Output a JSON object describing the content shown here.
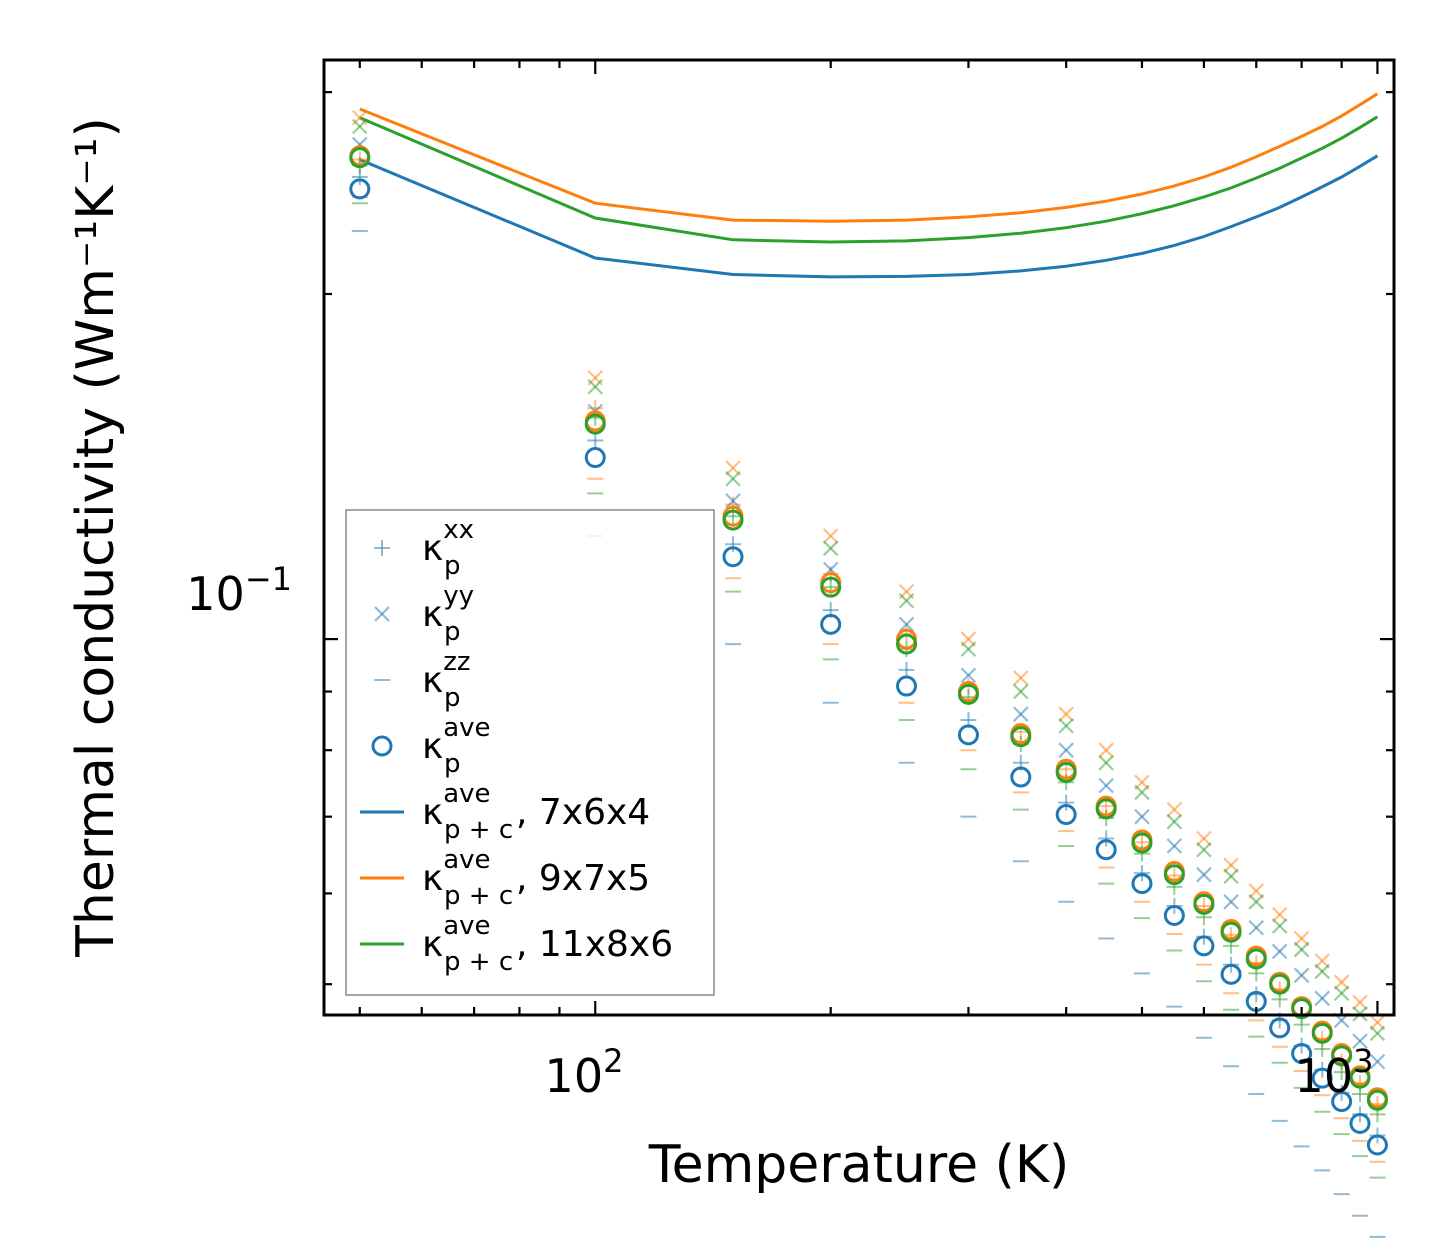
{
  "chart_data": {
    "type": "scatter",
    "xscale": "log",
    "yscale": "log",
    "xlabel": "Temperature (K)",
    "ylabel": "Thermal conductivity (Wm⁻¹K⁻¹)",
    "xlim": [
      45,
      1050
    ],
    "ylim": [
      0.047,
      0.32
    ],
    "x_tick_labels": [
      {
        "base": "10",
        "exp": "2",
        "value": 100
      },
      {
        "base": "10",
        "exp": "3",
        "value": 1000
      }
    ],
    "y_tick_labels": [
      {
        "base": "10",
        "exp": "−1",
        "value": 0.1
      }
    ],
    "x": [
      50,
      100,
      150,
      200,
      250,
      300,
      350,
      400,
      450,
      500,
      550,
      600,
      650,
      700,
      750,
      800,
      850,
      900,
      950,
      1000
    ],
    "scatter_series": [
      {
        "name": "kxx_7x6x4",
        "group": "xx",
        "color": "#1f77b4",
        "values": [
          0.253,
          0.149,
          0.121,
          0.106,
          0.094,
          0.085,
          0.078,
          0.072,
          0.067,
          0.0625,
          0.0585,
          0.055,
          0.052,
          0.049,
          0.0465,
          0.0442,
          0.0421,
          0.0402,
          0.0385,
          0.0369
        ]
      },
      {
        "name": "kxx_9x7x5",
        "group": "xx",
        "color": "#ff7f0e",
        "values": [
          0.262,
          0.159,
          0.131,
          0.114,
          0.101,
          0.091,
          0.083,
          0.077,
          0.0715,
          0.0665,
          0.0622,
          0.0585,
          0.0552,
          0.0522,
          0.0495,
          0.047,
          0.0448,
          0.0428,
          0.041,
          0.0393
        ]
      },
      {
        "name": "kxx_11x8x6",
        "group": "xx",
        "color": "#2ca02c",
        "values": [
          0.259,
          0.156,
          0.128,
          0.111,
          0.098,
          0.089,
          0.081,
          0.075,
          0.0698,
          0.065,
          0.0608,
          0.0572,
          0.054,
          0.0511,
          0.0485,
          0.0461,
          0.0439,
          0.0419,
          0.0401,
          0.0385
        ]
      },
      {
        "name": "kyy_7x6x4",
        "group": "yy",
        "color": "#1f77b4",
        "values": [
          0.27,
          0.158,
          0.132,
          0.115,
          0.103,
          0.093,
          0.086,
          0.08,
          0.0745,
          0.07,
          0.066,
          0.0623,
          0.059,
          0.056,
          0.0534,
          0.0509,
          0.0486,
          0.0465,
          0.0446,
          0.0428
        ]
      },
      {
        "name": "kyy_9x7x5",
        "group": "yy",
        "color": "#ff7f0e",
        "values": [
          0.285,
          0.169,
          0.141,
          0.123,
          0.11,
          0.1,
          0.0925,
          0.086,
          0.08,
          0.075,
          0.071,
          0.067,
          0.0635,
          0.0603,
          0.0575,
          0.0548,
          0.0524,
          0.0502,
          0.0482,
          0.0463
        ]
      },
      {
        "name": "kyy_11x8x6",
        "group": "yy",
        "color": "#2ca02c",
        "values": [
          0.28,
          0.166,
          0.138,
          0.12,
          0.108,
          0.098,
          0.09,
          0.084,
          0.078,
          0.0735,
          0.0693,
          0.0655,
          0.0621,
          0.059,
          0.0562,
          0.0536,
          0.0513,
          0.0491,
          0.0471,
          0.0453
        ]
      },
      {
        "name": "kzz_7x6x4",
        "group": "zz",
        "color": "#1f77b4",
        "values": [
          0.227,
          0.123,
          0.099,
          0.088,
          0.078,
          0.07,
          0.064,
          0.059,
          0.0548,
          0.0511,
          0.0478,
          0.0449,
          0.0424,
          0.0401,
          0.038,
          0.0361,
          0.0344,
          0.0328,
          0.0314,
          0.0301
        ]
      },
      {
        "name": "kzz_9x7x5",
        "group": "zz",
        "color": "#ff7f0e",
        "values": [
          0.243,
          0.138,
          0.113,
          0.099,
          0.088,
          0.08,
          0.0735,
          0.068,
          0.0632,
          0.059,
          0.0553,
          0.052,
          0.0491,
          0.0465,
          0.0441,
          0.042,
          0.04,
          0.0382,
          0.0365,
          0.035
        ]
      },
      {
        "name": "kzz_11x8x6",
        "group": "zz",
        "color": "#2ca02c",
        "values": [
          0.24,
          0.134,
          0.11,
          0.096,
          0.085,
          0.077,
          0.071,
          0.066,
          0.0612,
          0.0571,
          0.0535,
          0.0503,
          0.0475,
          0.045,
          0.0427,
          0.0406,
          0.0387,
          0.037,
          0.0354,
          0.0339
        ]
      },
      {
        "name": "kave_7x6x4",
        "group": "ave",
        "color": "#1f77b4",
        "values": [
          0.247,
          0.144,
          0.118,
          0.103,
          0.091,
          0.0825,
          0.0758,
          0.0703,
          0.0655,
          0.0612,
          0.0574,
          0.054,
          0.051,
          0.0483,
          0.0458,
          0.0435,
          0.0414,
          0.0395,
          0.0378,
          0.0362
        ]
      },
      {
        "name": "kave_9x7x5",
        "group": "ave",
        "color": "#ff7f0e",
        "values": [
          0.264,
          0.155,
          0.128,
          0.112,
          0.1,
          0.09,
          0.0827,
          0.077,
          0.0715,
          0.0668,
          0.0627,
          0.059,
          0.0558,
          0.0529,
          0.0502,
          0.0478,
          0.0455,
          0.0435,
          0.0416,
          0.0398
        ]
      },
      {
        "name": "kave_11x8x6",
        "group": "ave",
        "color": "#2ca02c",
        "values": [
          0.263,
          0.154,
          0.127,
          0.111,
          0.099,
          0.0895,
          0.0822,
          0.0765,
          0.0711,
          0.0664,
          0.0623,
          0.0587,
          0.0555,
          0.0526,
          0.05,
          0.0476,
          0.0453,
          0.0433,
          0.0414,
          0.0396
        ]
      }
    ],
    "line_series": [
      {
        "name": "kpc_7x6x4",
        "color": "#1f77b4",
        "x": [
          50,
          100,
          150,
          200,
          250,
          300,
          350,
          400,
          450,
          500,
          550,
          600,
          650,
          700,
          750,
          800,
          850,
          900,
          950,
          1000
        ],
        "values": [
          0.262,
          0.215,
          0.208,
          0.207,
          0.2072,
          0.208,
          0.2095,
          0.2115,
          0.214,
          0.217,
          0.2205,
          0.2245,
          0.229,
          0.2335,
          0.238,
          0.243,
          0.248,
          0.253,
          0.2585,
          0.264
        ]
      },
      {
        "name": "kpc_9x7x5",
        "color": "#ff7f0e",
        "x": [
          50,
          100,
          150,
          200,
          250,
          300,
          350,
          400,
          450,
          500,
          550,
          600,
          650,
          700,
          750,
          800,
          850,
          900,
          950,
          1000
        ],
        "values": [
          0.29,
          0.24,
          0.232,
          0.2315,
          0.232,
          0.2335,
          0.2355,
          0.238,
          0.241,
          0.2445,
          0.2485,
          0.253,
          0.258,
          0.2635,
          0.269,
          0.2745,
          0.28,
          0.286,
          0.2925,
          0.299
        ]
      },
      {
        "name": "kpc_11x8x6",
        "color": "#2ca02c",
        "x": [
          50,
          100,
          150,
          200,
          250,
          300,
          350,
          400,
          450,
          500,
          550,
          600,
          650,
          700,
          750,
          800,
          850,
          900,
          950,
          1000
        ],
        "values": [
          0.285,
          0.233,
          0.223,
          0.222,
          0.2225,
          0.224,
          0.226,
          0.2285,
          0.2315,
          0.235,
          0.2388,
          0.243,
          0.2475,
          0.2525,
          0.2575,
          0.2628,
          0.268,
          0.2735,
          0.2795,
          0.2855
        ]
      }
    ],
    "legend": {
      "location": "lower-left",
      "entries": [
        {
          "marker": "plus",
          "color": "#1f77b4",
          "base": "κ",
          "sub": "p",
          "sup": "xx",
          "suffix": ""
        },
        {
          "marker": "cross",
          "color": "#1f77b4",
          "base": "κ",
          "sub": "p",
          "sup": "yy",
          "suffix": ""
        },
        {
          "marker": "dash",
          "color": "#1f77b4",
          "base": "κ",
          "sub": "p",
          "sup": "zz",
          "suffix": ""
        },
        {
          "marker": "circle",
          "color": "#1f77b4",
          "base": "κ",
          "sub": "p",
          "sup": "ave",
          "suffix": ""
        },
        {
          "marker": "line",
          "color": "#1f77b4",
          "base": "κ",
          "sub": "p + c",
          "sup": "ave",
          "suffix": ", 7x6x4"
        },
        {
          "marker": "line",
          "color": "#ff7f0e",
          "base": "κ",
          "sub": "p + c",
          "sup": "ave",
          "suffix": ", 9x7x5"
        },
        {
          "marker": "line",
          "color": "#2ca02c",
          "base": "κ",
          "sub": "p + c",
          "sup": "ave",
          "suffix": ", 11x8x6"
        }
      ]
    }
  }
}
